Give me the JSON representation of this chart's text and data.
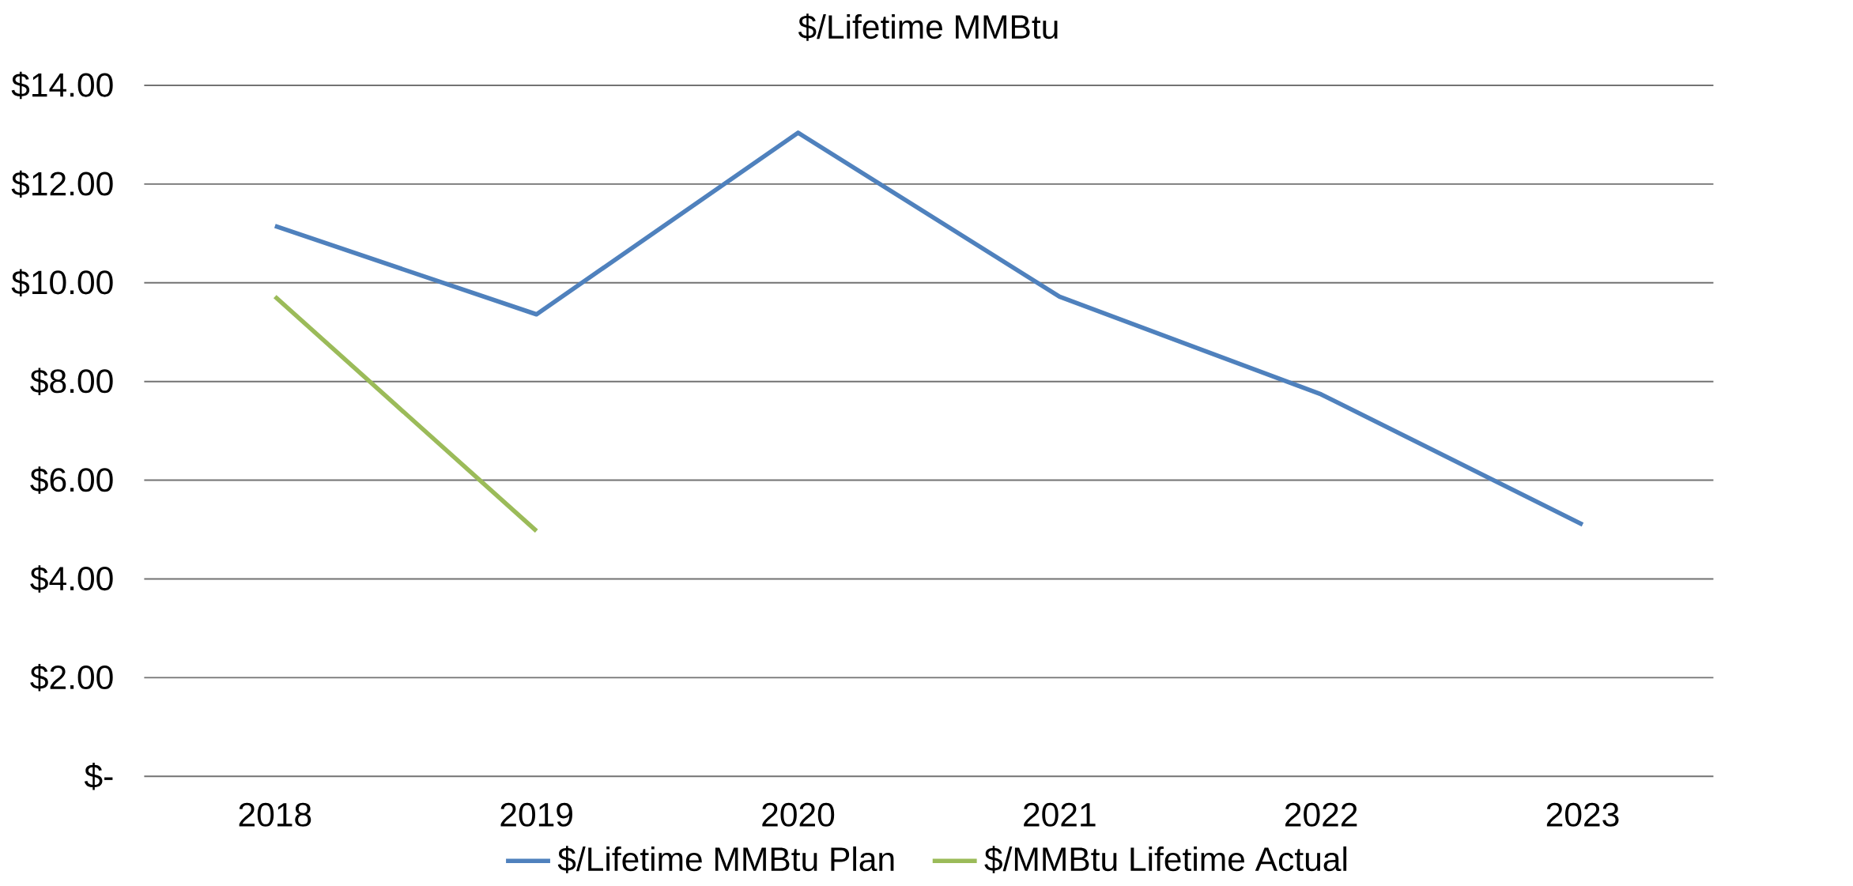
{
  "chart_data": {
    "type": "line",
    "title": "$/Lifetime MMBtu",
    "categories": [
      "2018",
      "2019",
      "2020",
      "2021",
      "2022",
      "2023"
    ],
    "series": [
      {
        "name": "$/Lifetime MMBtu Plan",
        "color": "#4f81bd",
        "values": [
          11.15,
          9.36,
          13.04,
          9.72,
          7.74,
          5.1
        ]
      },
      {
        "name": "$/MMBtu Lifetime Actual",
        "color": "#9bbb59",
        "values": [
          9.72,
          4.97,
          null,
          null,
          null,
          null
        ]
      }
    ],
    "ylim": [
      0,
      14
    ],
    "yticks": [
      {
        "value": 0,
        "label": "$-"
      },
      {
        "value": 2,
        "label": "$2.00"
      },
      {
        "value": 4,
        "label": "$4.00"
      },
      {
        "value": 6,
        "label": "$6.00"
      },
      {
        "value": 8,
        "label": "$8.00"
      },
      {
        "value": 10,
        "label": "$10.00"
      },
      {
        "value": 12,
        "label": "$12.00"
      },
      {
        "value": 14,
        "label": "$14.00"
      }
    ],
    "grid": "y",
    "legend": "bottom",
    "marker": "none",
    "line_style": "solid"
  }
}
